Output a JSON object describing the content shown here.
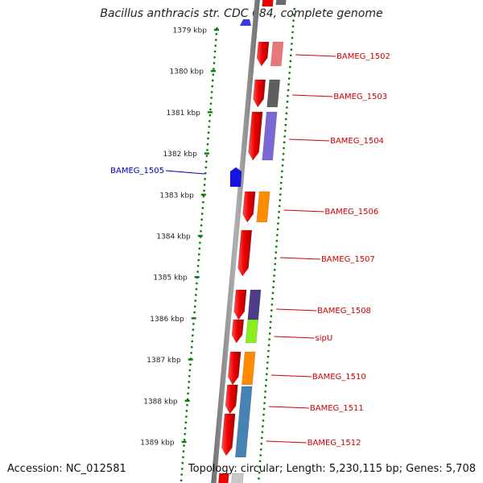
{
  "title": "Bacillus anthracis str. CDC 684, complete genome",
  "footer": {
    "accession": "Accession: NC_012581",
    "summary": "Topology: circular; Length: 5,230,115 bp; Genes: 5,708"
  },
  "ticks": [
    {
      "label": "1379 kbp"
    },
    {
      "label": "1380 kbp"
    },
    {
      "label": "1381 kbp"
    },
    {
      "label": "1382 kbp"
    },
    {
      "label": "1383 kbp"
    },
    {
      "label": "1384 kbp"
    },
    {
      "label": "1385 kbp"
    },
    {
      "label": "1386 kbp"
    },
    {
      "label": "1387 kbp"
    },
    {
      "label": "1388 kbp"
    },
    {
      "label": "1389 kbp"
    }
  ],
  "genes": [
    {
      "label": "BAMEG_1502",
      "cds_color": "#e87878"
    },
    {
      "label": "BAMEG_1503",
      "cds_color": "#5f5f5f"
    },
    {
      "label": "BAMEG_1504",
      "cds_color": "#7b68d6"
    },
    {
      "label": "BAMEG_1505",
      "cds_color": "#1515e0"
    },
    {
      "label": "BAMEG_1506",
      "cds_color": "#ff8c00"
    },
    {
      "label": "BAMEG_1507",
      "cds_color": ""
    },
    {
      "label": "BAMEG_1508",
      "cds_color": "#4d3d8a"
    },
    {
      "label": "sipU",
      "cds_color": "#88ee22"
    },
    {
      "label": "BAMEG_1510",
      "cds_color": "#ff8c00"
    },
    {
      "label": "BAMEG_1511",
      "cds_color": "#4682b4"
    },
    {
      "label": "BAMEG_1512",
      "cds_color": ""
    }
  ],
  "colors": {
    "forward_label": "#cc0000",
    "reverse_label": "#0000bb",
    "gene_red": "#ee0000",
    "tick_green": "#0a7a0a",
    "backbone": "#8a8a8a"
  }
}
